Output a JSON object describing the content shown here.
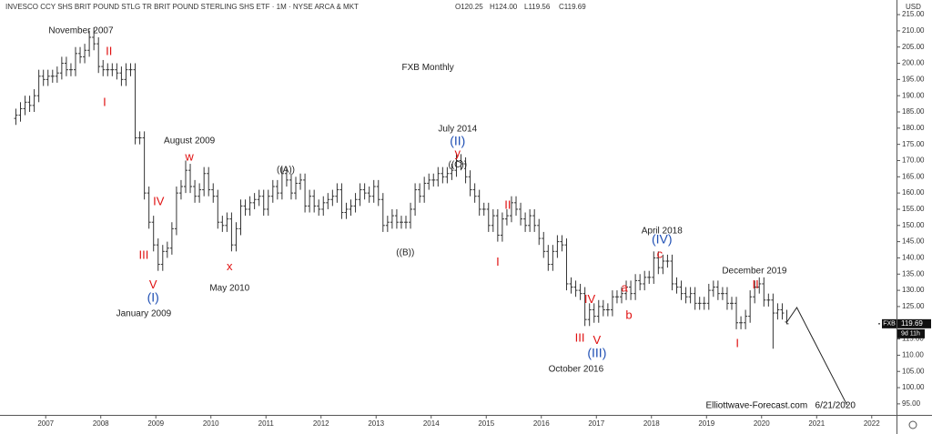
{
  "chart_data": {
    "type": "ohlc",
    "header": {
      "title": "INVESCO CCY SHS BRIT POUND STLG TR BRIT POUND STERLING SHS ETF · 1M · NYSE ARCA & MKT",
      "ohlc": [
        "O120.25",
        "H124.00",
        "L119.56",
        "C119.69"
      ]
    },
    "currency": "USD",
    "color": "#333333",
    "xlim": [
      2006.17,
      2022.45
    ],
    "xticks": [
      2007,
      2008,
      2009,
      2010,
      2011,
      2012,
      2013,
      2014,
      2015,
      2016,
      2017,
      2018,
      2019,
      2020,
      2021,
      2022
    ],
    "ylim": [
      91.6,
      219.5
    ],
    "yticks": [
      {
        "value": 95,
        "label": "95.00"
      },
      {
        "value": 100,
        "label": "100.00"
      },
      {
        "value": 105,
        "label": "105.00"
      },
      {
        "value": 110,
        "label": "110.00"
      },
      {
        "value": 115,
        "label": "115.00"
      },
      {
        "value": 120,
        "label": "120.00"
      },
      {
        "value": 125,
        "label": "125.00"
      },
      {
        "value": 130,
        "label": "130.00"
      },
      {
        "value": 135,
        "label": "135.00"
      },
      {
        "value": 140,
        "label": "140.00"
      },
      {
        "value": 145,
        "label": "145.00"
      },
      {
        "value": 150,
        "label": "150.00"
      },
      {
        "value": 155,
        "label": "155.00"
      },
      {
        "value": 160,
        "label": "160.00"
      },
      {
        "value": 165,
        "label": "165.00"
      },
      {
        "value": 170,
        "label": "170.00"
      },
      {
        "value": 175,
        "label": "175.00"
      },
      {
        "value": 180,
        "label": "180.00"
      },
      {
        "value": 185,
        "label": "185.00"
      },
      {
        "value": 190,
        "label": "190.00"
      },
      {
        "value": 195,
        "label": "195.00"
      },
      {
        "value": 200,
        "label": "200.00"
      },
      {
        "value": 205,
        "label": "205.00"
      },
      {
        "value": 210,
        "label": "210.00"
      },
      {
        "value": 215,
        "label": "215.00"
      }
    ],
    "x": [
      "2006-06",
      "2006-07",
      "2006-08",
      "2006-09",
      "2006-10",
      "2006-11",
      "2006-12",
      "2007-01",
      "2007-02",
      "2007-03",
      "2007-04",
      "2007-05",
      "2007-06",
      "2007-07",
      "2007-08",
      "2007-09",
      "2007-10",
      "2007-11",
      "2007-12",
      "2008-01",
      "2008-02",
      "2008-03",
      "2008-04",
      "2008-05",
      "2008-06",
      "2008-07",
      "2008-08",
      "2008-09",
      "2008-10",
      "2008-11",
      "2008-12",
      "2009-01",
      "2009-02",
      "2009-03",
      "2009-04",
      "2009-05",
      "2009-06",
      "2009-07",
      "2009-08",
      "2009-09",
      "2009-10",
      "2009-11",
      "2009-12",
      "2010-01",
      "2010-02",
      "2010-03",
      "2010-04",
      "2010-05",
      "2010-06",
      "2010-07",
      "2010-08",
      "2010-09",
      "2010-10",
      "2010-11",
      "2010-12",
      "2011-01",
      "2011-02",
      "2011-03",
      "2011-04",
      "2011-05",
      "2011-06",
      "2011-07",
      "2011-08",
      "2011-09",
      "2011-10",
      "2011-11",
      "2011-12",
      "2012-01",
      "2012-02",
      "2012-03",
      "2012-04",
      "2012-05",
      "2012-06",
      "2012-07",
      "2012-08",
      "2012-09",
      "2012-10",
      "2012-11",
      "2012-12",
      "2013-01",
      "2013-02",
      "2013-03",
      "2013-04",
      "2013-05",
      "2013-06",
      "2013-07",
      "2013-08",
      "2013-09",
      "2013-10",
      "2013-11",
      "2013-12",
      "2014-01",
      "2014-02",
      "2014-03",
      "2014-04",
      "2014-05",
      "2014-06",
      "2014-07",
      "2014-08",
      "2014-09",
      "2014-10",
      "2014-11",
      "2014-12",
      "2015-01",
      "2015-02",
      "2015-03",
      "2015-04",
      "2015-05",
      "2015-06",
      "2015-07",
      "2015-08",
      "2015-09",
      "2015-10",
      "2015-11",
      "2015-12",
      "2016-01",
      "2016-02",
      "2016-03",
      "2016-04",
      "2016-05",
      "2016-06",
      "2016-07",
      "2016-08",
      "2016-09",
      "2016-10",
      "2016-11",
      "2016-12",
      "2017-01",
      "2017-02",
      "2017-03",
      "2017-04",
      "2017-05",
      "2017-06",
      "2017-07",
      "2017-08",
      "2017-09",
      "2017-10",
      "2017-11",
      "2017-12",
      "2018-01",
      "2018-02",
      "2018-03",
      "2018-04",
      "2018-05",
      "2018-06",
      "2018-07",
      "2018-08",
      "2018-09",
      "2018-10",
      "2018-11",
      "2018-12",
      "2019-01",
      "2019-02",
      "2019-03",
      "2019-04",
      "2019-05",
      "2019-06",
      "2019-07",
      "2019-08",
      "2019-09",
      "2019-10",
      "2019-11",
      "2019-12",
      "2020-01",
      "2020-02",
      "2020-03",
      "2020-04",
      "2020-05",
      "2020-06"
    ],
    "open": [
      183,
      184,
      186,
      188,
      187,
      190,
      196,
      195,
      196,
      196,
      197,
      200,
      198,
      198,
      203,
      202,
      204,
      208,
      206,
      199,
      198,
      198,
      198,
      197,
      195,
      198,
      198,
      177,
      177,
      160,
      151,
      144,
      138,
      142,
      143,
      149,
      160,
      162,
      167,
      162,
      159,
      161,
      166,
      161,
      159,
      151,
      150,
      152,
      144,
      149,
      156,
      155,
      157,
      158,
      159,
      155,
      159,
      162,
      160,
      166,
      164,
      160,
      163,
      164,
      156,
      159,
      156,
      155,
      157,
      158,
      159,
      161,
      154,
      155,
      156,
      158,
      161,
      160,
      159,
      162,
      158,
      150,
      151,
      153,
      151,
      151,
      151,
      155,
      161,
      159,
      163,
      164,
      164,
      166,
      165,
      166,
      167,
      170,
      169,
      165,
      161,
      159,
      155,
      155,
      150,
      153,
      147,
      152,
      153,
      157,
      155,
      152,
      150,
      153,
      150,
      146,
      142,
      138,
      142,
      145,
      144,
      132,
      131,
      130,
      129,
      121,
      124,
      122,
      125,
      124,
      124,
      128,
      128,
      129,
      131,
      129,
      133,
      132,
      134,
      134,
      140,
      137,
      139,
      139,
      132,
      131,
      129,
      128,
      129,
      126,
      126,
      126,
      130,
      131,
      129,
      129,
      126,
      126,
      120,
      120,
      122,
      128,
      131,
      132,
      127,
      127,
      123,
      124,
      120.25
    ],
    "high": [
      186,
      188,
      190,
      190,
      192,
      198,
      198,
      198,
      198,
      199,
      202,
      202,
      200,
      205,
      205,
      206,
      210,
      211,
      208,
      201,
      200,
      200,
      200,
      199,
      200,
      200,
      200,
      179,
      179,
      162,
      153,
      146,
      144,
      145,
      151,
      162,
      164,
      170,
      169,
      164,
      163,
      168,
      168,
      163,
      161,
      153,
      154,
      154,
      151,
      158,
      158,
      159,
      160,
      161,
      161,
      161,
      164,
      164,
      168,
      168,
      166,
      165,
      166,
      166,
      161,
      161,
      158,
      159,
      160,
      161,
      163,
      163,
      157,
      158,
      160,
      163,
      163,
      162,
      164,
      164,
      160,
      153,
      155,
      155,
      153,
      153,
      157,
      163,
      163,
      165,
      166,
      166,
      168,
      168,
      168,
      169,
      172,
      172,
      171,
      167,
      163,
      161,
      157,
      157,
      155,
      155,
      154,
      155,
      159,
      159,
      157,
      154,
      155,
      155,
      152,
      148,
      144,
      144,
      147,
      147,
      146,
      134,
      133,
      132,
      131,
      126,
      126,
      127,
      127,
      126,
      130,
      130,
      131,
      133,
      133,
      135,
      135,
      136,
      136,
      142,
      142,
      141,
      141,
      141,
      134,
      133,
      131,
      131,
      131,
      128,
      128,
      132,
      133,
      133,
      131,
      131,
      128,
      128,
      122,
      124,
      130,
      133,
      134,
      134,
      129,
      129,
      126,
      126,
      124
    ],
    "low": [
      181,
      182,
      184,
      185,
      185,
      188,
      193,
      193,
      194,
      194,
      195,
      196,
      196,
      196,
      200,
      200,
      202,
      204,
      197,
      196,
      196,
      196,
      195,
      193,
      193,
      196,
      175,
      175,
      158,
      149,
      142,
      136,
      136,
      140,
      141,
      147,
      158,
      160,
      160,
      157,
      157,
      159,
      159,
      157,
      149,
      148,
      148,
      142,
      142,
      147,
      153,
      153,
      155,
      156,
      153,
      153,
      157,
      158,
      158,
      162,
      158,
      158,
      161,
      154,
      154,
      154,
      153,
      153,
      155,
      156,
      157,
      152,
      152,
      153,
      154,
      156,
      158,
      157,
      157,
      156,
      148,
      148,
      149,
      149,
      149,
      149,
      149,
      153,
      157,
      157,
      161,
      162,
      162,
      163,
      163,
      164,
      165,
      167,
      163,
      159,
      157,
      153,
      153,
      148,
      148,
      145,
      145,
      150,
      151,
      153,
      150,
      148,
      148,
      148,
      144,
      140,
      136,
      136,
      140,
      142,
      130,
      129,
      128,
      127,
      119,
      119,
      120,
      120,
      122,
      122,
      122,
      126,
      126,
      127,
      127,
      127,
      130,
      130,
      132,
      132,
      135,
      135,
      137,
      130,
      129,
      127,
      126,
      126,
      124,
      124,
      124,
      124,
      128,
      127,
      127,
      124,
      124,
      118,
      118,
      118,
      120,
      126,
      129,
      125,
      125,
      112,
      121,
      121,
      119.56
    ],
    "close": [
      184,
      186,
      188,
      187,
      190,
      196,
      195,
      196,
      196,
      197,
      200,
      198,
      198,
      203,
      202,
      204,
      208,
      206,
      199,
      198,
      198,
      198,
      197,
      195,
      198,
      198,
      177,
      177,
      160,
      151,
      144,
      138,
      142,
      143,
      149,
      160,
      162,
      167,
      162,
      159,
      161,
      166,
      161,
      159,
      151,
      150,
      152,
      144,
      149,
      156,
      155,
      157,
      158,
      159,
      155,
      159,
      162,
      160,
      166,
      164,
      160,
      163,
      164,
      156,
      159,
      156,
      155,
      157,
      158,
      159,
      161,
      154,
      155,
      156,
      158,
      161,
      160,
      159,
      162,
      158,
      150,
      151,
      153,
      151,
      151,
      151,
      155,
      161,
      159,
      163,
      164,
      164,
      166,
      165,
      166,
      167,
      170,
      169,
      165,
      161,
      159,
      155,
      155,
      150,
      153,
      147,
      152,
      153,
      157,
      155,
      152,
      150,
      153,
      150,
      146,
      142,
      138,
      142,
      145,
      144,
      132,
      131,
      130,
      129,
      121,
      124,
      122,
      125,
      124,
      124,
      128,
      128,
      129,
      131,
      129,
      133,
      132,
      134,
      134,
      140,
      137,
      139,
      139,
      132,
      131,
      129,
      128,
      129,
      126,
      126,
      126,
      130,
      131,
      129,
      129,
      126,
      126,
      120,
      120,
      122,
      128,
      131,
      132,
      127,
      127,
      123,
      124,
      123,
      119.69
    ],
    "projection": {
      "color": "#222222",
      "x": [
        2020.45,
        2020.64,
        2021.55
      ],
      "values": [
        120,
        124.7,
        94.7
      ]
    },
    "last_price": {
      "symbol": "FXB",
      "value": 119.69,
      "countdown": "9d 11h"
    },
    "annotations": [
      {
        "text": "November 2007",
        "x": 2007.64,
        "y": 210.0,
        "color": "#222222",
        "size": 10
      },
      {
        "text": "II",
        "x": 2008.15,
        "y": 203.5,
        "color": "#e01010",
        "size": 13
      },
      {
        "text": "I",
        "x": 2008.07,
        "y": 187.8,
        "color": "#e01010",
        "size": 13
      },
      {
        "text": "FXB Monthly",
        "x": 2013.94,
        "y": 198.7,
        "color": "#222222",
        "size": 10
      },
      {
        "text": "August 2009",
        "x": 2009.61,
        "y": 176.0,
        "color": "#222222",
        "size": 10
      },
      {
        "text": "w",
        "x": 2009.61,
        "y": 171.0,
        "color": "#e01010",
        "size": 13
      },
      {
        "text": "((A))",
        "x": 2011.36,
        "y": 167.1,
        "color": "#222222",
        "size": 10
      },
      {
        "text": "IV",
        "x": 2009.05,
        "y": 157.2,
        "color": "#e01010",
        "size": 13
      },
      {
        "text": "III",
        "x": 2008.78,
        "y": 140.7,
        "color": "#e01010",
        "size": 13
      },
      {
        "text": "V",
        "x": 2008.95,
        "y": 131.5,
        "color": "#e01010",
        "size": 13
      },
      {
        "text": "(I)",
        "x": 2008.95,
        "y": 127.5,
        "color": "#1f4fb4",
        "size": 14
      },
      {
        "text": "January 2009",
        "x": 2008.78,
        "y": 122.8,
        "color": "#222222",
        "size": 10
      },
      {
        "text": "x",
        "x": 2010.34,
        "y": 137.1,
        "color": "#e01010",
        "size": 13
      },
      {
        "text": "May 2010",
        "x": 2010.34,
        "y": 130.6,
        "color": "#222222",
        "size": 10
      },
      {
        "text": "July 2014",
        "x": 2014.48,
        "y": 179.7,
        "color": "#222222",
        "size": 10
      },
      {
        "text": "(II)",
        "x": 2014.48,
        "y": 175.8,
        "color": "#1f4fb4",
        "size": 14
      },
      {
        "text": "y",
        "x": 2014.48,
        "y": 172.1,
        "color": "#e01010",
        "size": 13
      },
      {
        "text": "((C))",
        "x": 2014.48,
        "y": 168.7,
        "color": "#222222",
        "size": 10
      },
      {
        "text": "((B))",
        "x": 2013.53,
        "y": 141.5,
        "color": "#222222",
        "size": 10
      },
      {
        "text": "II",
        "x": 2015.39,
        "y": 156.1,
        "color": "#e01010",
        "size": 13
      },
      {
        "text": "I",
        "x": 2015.21,
        "y": 138.5,
        "color": "#e01010",
        "size": 13
      },
      {
        "text": "IV",
        "x": 2016.88,
        "y": 127.0,
        "color": "#e01010",
        "size": 13
      },
      {
        "text": "a",
        "x": 2017.51,
        "y": 130.6,
        "color": "#e01010",
        "size": 13
      },
      {
        "text": "b",
        "x": 2017.59,
        "y": 122.2,
        "color": "#e01010",
        "size": 13
      },
      {
        "text": "III",
        "x": 2016.7,
        "y": 115.2,
        "color": "#e01010",
        "size": 13
      },
      {
        "text": "V",
        "x": 2017.01,
        "y": 114.4,
        "color": "#e01010",
        "size": 13
      },
      {
        "text": "(III)",
        "x": 2017.01,
        "y": 110.4,
        "color": "#1f4fb4",
        "size": 14
      },
      {
        "text": "October 2016",
        "x": 2016.63,
        "y": 105.7,
        "color": "#222222",
        "size": 10
      },
      {
        "text": "April 2018",
        "x": 2018.19,
        "y": 148.3,
        "color": "#222222",
        "size": 10
      },
      {
        "text": "(IV)",
        "x": 2018.19,
        "y": 145.5,
        "color": "#1f4fb4",
        "size": 14
      },
      {
        "text": "c",
        "x": 2018.15,
        "y": 141.0,
        "color": "#e01010",
        "size": 13
      },
      {
        "text": "December 2019",
        "x": 2019.87,
        "y": 135.9,
        "color": "#222222",
        "size": 10
      },
      {
        "text": "II",
        "x": 2019.89,
        "y": 131.5,
        "color": "#e01010",
        "size": 13
      },
      {
        "text": "I",
        "x": 2019.56,
        "y": 113.5,
        "color": "#e01010",
        "size": 13
      }
    ],
    "watermark": "Elliottwave-Forecast.com   6/21/2020"
  }
}
